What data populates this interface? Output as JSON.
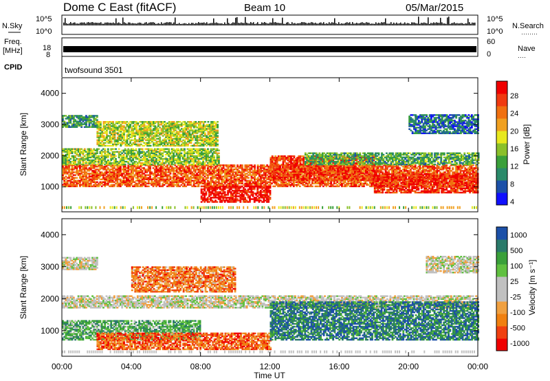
{
  "header": {
    "station": "Dome C East (fitACF)",
    "beam": "Beam 10",
    "date": "05/Mar/2015"
  },
  "strip_nsky": {
    "label": "N.Sky",
    "right_label": "N.Search",
    "ticks_left": [
      "10^5",
      "10^0"
    ],
    "ticks_right": [
      "10^5",
      "10^0"
    ],
    "right_legend_line": "········"
  },
  "strip_freq": {
    "label_line1": "Freq.",
    "label_line2": "[MHz]",
    "ticks_left": [
      "18",
      "8"
    ],
    "right_label": "Nave",
    "ticks_right": [
      "60",
      "0"
    ],
    "right_legend_line": "····"
  },
  "cpid": {
    "label": "CPID",
    "program": "twofsound 3501"
  },
  "x_axis": {
    "label": "Time UT",
    "ticks": [
      "00:00",
      "04:00",
      "08:00",
      "12:00",
      "16:00",
      "20:00",
      "00:00"
    ]
  },
  "chart_data": [
    {
      "type": "heatmap",
      "parameter": "power",
      "ylabel": "Slant Range [km]",
      "y_ticks": [
        1000,
        2000,
        3000,
        4000
      ],
      "ylim": [
        200,
        4500
      ],
      "xlim_hours": [
        0,
        24
      ],
      "colorbar": {
        "label": "Power [dB]",
        "ticks": [
          "28",
          "24",
          "20",
          "16",
          "12",
          "8",
          "4"
        ],
        "range": [
          0,
          30
        ],
        "colors": [
          "#1010ff",
          "#1c50a8",
          "#2a8a6a",
          "#3aa03a",
          "#8ac02a",
          "#e8e81e",
          "#f0a020",
          "#f07010",
          "#f03a10",
          "#f00000"
        ]
      },
      "bands": [
        {
          "t0": 0,
          "t1": 24,
          "r0": 1000,
          "r1": 1700,
          "level": 0.8
        },
        {
          "t0": 0,
          "t1": 9,
          "r0": 1700,
          "r1": 2200,
          "level": 0.45
        },
        {
          "t0": 0,
          "t1": 2,
          "r0": 2900,
          "r1": 3300,
          "level": 0.3
        },
        {
          "t0": 2,
          "t1": 9,
          "r0": 2300,
          "r1": 3100,
          "level": 0.5
        },
        {
          "t0": 8,
          "t1": 12,
          "r0": 500,
          "r1": 1000,
          "level": 0.95
        },
        {
          "t0": 12,
          "t1": 18,
          "r0": 1200,
          "r1": 2000,
          "level": 0.85
        },
        {
          "t0": 18,
          "t1": 24,
          "r0": 800,
          "r1": 1400,
          "level": 0.9
        },
        {
          "t0": 14,
          "t1": 24,
          "r0": 1700,
          "r1": 2100,
          "level": 0.35
        },
        {
          "t0": 20,
          "t1": 24,
          "r0": 2700,
          "r1": 3300,
          "level": 0.2
        }
      ]
    },
    {
      "type": "heatmap",
      "parameter": "velocity",
      "ylabel": "Slant Range [km]",
      "y_ticks": [
        1000,
        2000,
        3000,
        4000
      ],
      "ylim": [
        200,
        4500
      ],
      "xlim_hours": [
        0,
        24
      ],
      "colorbar": {
        "label": "Velocity [m s⁻¹]",
        "ticks": [
          "1000",
          "500",
          "100",
          "25",
          "-25",
          "-100",
          "-500",
          "-1000"
        ],
        "range": [
          -1000,
          1000
        ],
        "colors": [
          "#f00000",
          "#f04010",
          "#f08010",
          "#f0a040",
          "#c0c0c0",
          "#c0c0c0",
          "#60c040",
          "#3aa03a",
          "#2a7a6a",
          "#1c50a8"
        ]
      },
      "bands": [
        {
          "t0": 0,
          "t1": 8,
          "r0": 700,
          "r1": 1300,
          "level": 0.72
        },
        {
          "t0": 2,
          "t1": 12,
          "r0": 400,
          "r1": 900,
          "level": 0.2
        },
        {
          "t0": 0,
          "t1": 24,
          "r0": 1700,
          "r1": 2100,
          "level": 0.5
        },
        {
          "t0": 4,
          "t1": 10,
          "r0": 2200,
          "r1": 3000,
          "level": 0.25
        },
        {
          "t0": 12,
          "t1": 24,
          "r0": 700,
          "r1": 1900,
          "level": 0.85
        },
        {
          "t0": 0,
          "t1": 2,
          "r0": 2900,
          "r1": 3300,
          "level": 0.5
        },
        {
          "t0": 21,
          "t1": 24,
          "r0": 2800,
          "r1": 3300,
          "level": 0.5
        }
      ]
    }
  ]
}
